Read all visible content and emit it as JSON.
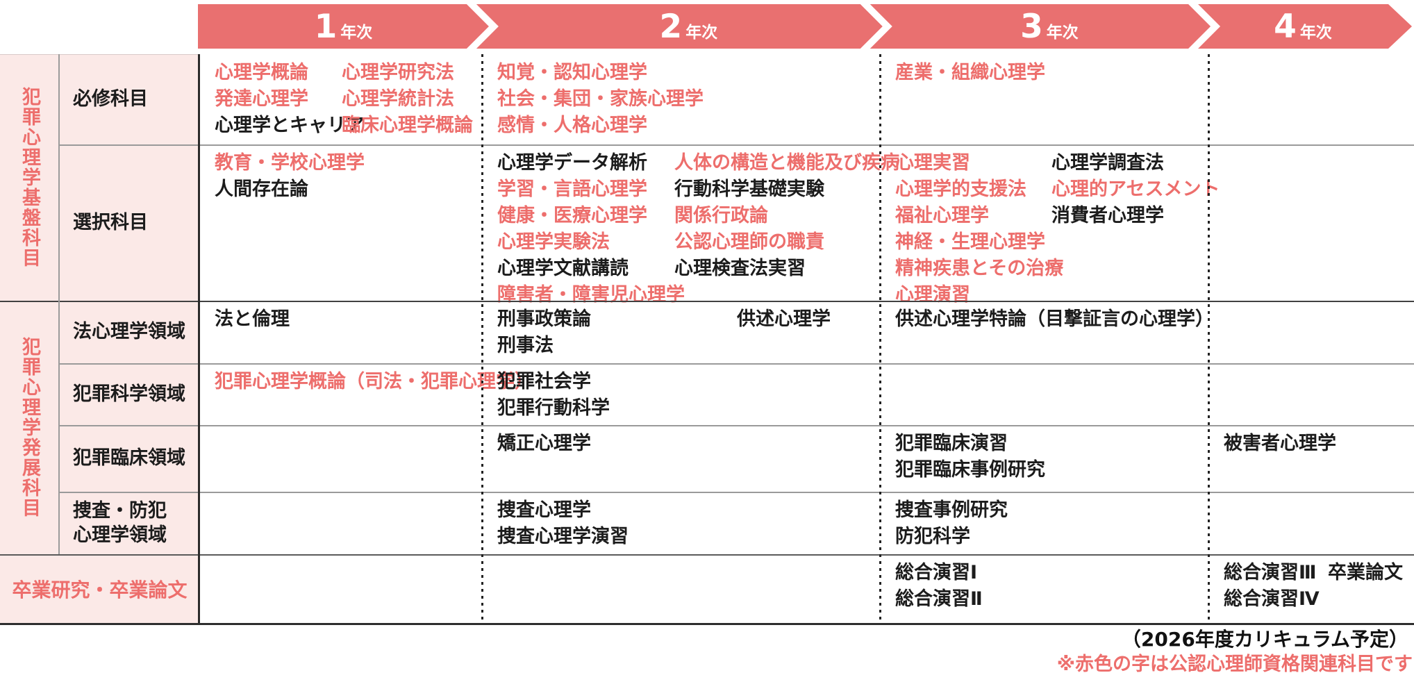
{
  "banner": {
    "years": [
      {
        "num": "1",
        "unit": "年次"
      },
      {
        "num": "2",
        "unit": "年次"
      },
      {
        "num": "3",
        "unit": "年次"
      },
      {
        "num": "4",
        "unit": "年次"
      }
    ]
  },
  "labels": {
    "group1": "犯罪心理学基盤科目",
    "group2": "犯罪心理学発展科目",
    "rows": [
      "必修科目",
      "選択科目",
      "法心理学領域",
      "犯罪科学領域",
      "犯罪臨床領域",
      "捜査・防犯\n心理学領域"
    ],
    "thesis": "卒業研究・卒業論文"
  },
  "cells": {
    "hisshu_y1_c1": [
      {
        "t": "心理学概論",
        "r": true
      },
      {
        "t": "発達心理学",
        "r": true
      },
      {
        "t": "心理学とキャリア",
        "r": false
      }
    ],
    "hisshu_y1_c2": [
      {
        "t": "心理学研究法",
        "r": true
      },
      {
        "t": "心理学統計法",
        "r": true
      },
      {
        "t": "臨床心理学概論",
        "r": true
      }
    ],
    "hisshu_y2": [
      {
        "t": "知覚・認知心理学",
        "r": true
      },
      {
        "t": "社会・集団・家族心理学",
        "r": true
      },
      {
        "t": "感情・人格心理学",
        "r": true
      }
    ],
    "hisshu_y3": [
      {
        "t": "産業・組織心理学",
        "r": true
      }
    ],
    "sentaku_y1": [
      {
        "t": "教育・学校心理学",
        "r": true
      },
      {
        "t": "人間存在論",
        "r": false
      }
    ],
    "sentaku_y2_c1": [
      {
        "t": "心理学データ解析",
        "r": false
      },
      {
        "t": "学習・言語心理学",
        "r": true
      },
      {
        "t": "健康・医療心理学",
        "r": true
      },
      {
        "t": "心理学実験法",
        "r": true
      },
      {
        "t": "心理学文献講読",
        "r": false
      },
      {
        "t": "障害者・障害児心理学",
        "r": true
      }
    ],
    "sentaku_y2_c2": [
      {
        "t": "人体の構造と機能及び疾病",
        "r": true
      },
      {
        "t": "行動科学基礎実験",
        "r": false
      },
      {
        "t": "関係行政論",
        "r": true
      },
      {
        "t": "公認心理師の職責",
        "r": true
      },
      {
        "t": "心理検査法実習",
        "r": false
      }
    ],
    "sentaku_y3_c1": [
      {
        "t": "心理実習",
        "r": true
      },
      {
        "t": "心理学的支援法",
        "r": true
      },
      {
        "t": "福祉心理学",
        "r": true
      },
      {
        "t": "神経・生理心理学",
        "r": true
      },
      {
        "t": "精神疾患とその治療",
        "r": true
      },
      {
        "t": "心理演習",
        "r": true
      }
    ],
    "sentaku_y3_c2": [
      {
        "t": "心理学調査法",
        "r": false
      },
      {
        "t": "心理的アセスメント",
        "r": true
      },
      {
        "t": "消費者心理学",
        "r": false
      }
    ],
    "hou_y1": [
      {
        "t": "法と倫理",
        "r": false
      }
    ],
    "hou_y2_c1": [
      {
        "t": "刑事政策論",
        "r": false
      },
      {
        "t": "刑事法",
        "r": false
      }
    ],
    "hou_y2_c2": [
      {
        "t": "供述心理学",
        "r": false
      }
    ],
    "hou_y3": [
      {
        "t": "供述心理学特論（目撃証言の心理学）",
        "r": false
      }
    ],
    "kagaku_y1": [
      {
        "t": "犯罪心理学概論（司法・犯罪心理学）",
        "r": true
      }
    ],
    "kagaku_y2": [
      {
        "t": "犯罪社会学",
        "r": false
      },
      {
        "t": "犯罪行動科学",
        "r": false
      }
    ],
    "rinsho_y2": [
      {
        "t": "矯正心理学",
        "r": false
      }
    ],
    "rinsho_y3": [
      {
        "t": "犯罪臨床演習",
        "r": false
      },
      {
        "t": "犯罪臨床事例研究",
        "r": false
      }
    ],
    "rinsho_y4": [
      {
        "t": "被害者心理学",
        "r": false
      }
    ],
    "sousa_y2": [
      {
        "t": "捜査心理学",
        "r": false
      },
      {
        "t": "捜査心理学演習",
        "r": false
      }
    ],
    "sousa_y3": [
      {
        "t": "捜査事例研究",
        "r": false
      },
      {
        "t": "防犯科学",
        "r": false
      }
    ],
    "sotsugyo_y3": [
      {
        "t": "総合演習Ⅰ",
        "r": false
      },
      {
        "t": "総合演習Ⅱ",
        "r": false
      }
    ],
    "sotsugyo_y4_c1": [
      {
        "t": "総合演習Ⅲ",
        "r": false
      },
      {
        "t": "総合演習Ⅳ",
        "r": false
      }
    ],
    "sotsugyo_y4_c2": [
      {
        "t": "卒業論文",
        "r": false
      }
    ]
  },
  "footer": {
    "note1": "（2026年度カリキュラム予定）",
    "note2": "※赤色の字は公認心理師資格関連科目です"
  },
  "colors": {
    "accent": "#e97070",
    "red_text": "#ed6e6c",
    "label_bg": "#fbe9e7"
  }
}
